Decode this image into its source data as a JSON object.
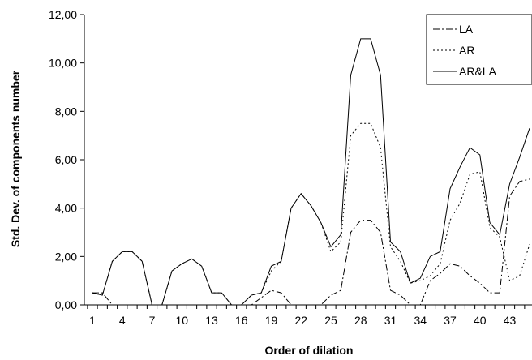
{
  "chart_data": {
    "type": "line",
    "xlabel": "Order of dilation",
    "ylabel": "Std. Dev. of components number",
    "ylim": [
      0,
      12
    ],
    "yticks": [
      "0,00",
      "2,00",
      "4,00",
      "6,00",
      "8,00",
      "10,00",
      "12,00"
    ],
    "x": [
      1,
      2,
      3,
      4,
      5,
      6,
      7,
      8,
      9,
      10,
      11,
      12,
      13,
      14,
      15,
      16,
      17,
      18,
      19,
      20,
      21,
      22,
      23,
      24,
      25,
      26,
      27,
      28,
      29,
      30,
      31,
      32,
      33,
      34,
      35,
      36,
      37,
      38,
      39,
      40,
      41,
      42,
      43,
      44,
      45
    ],
    "xtick_labels": [
      "1",
      "4",
      "7",
      "10",
      "13",
      "16",
      "19",
      "22",
      "25",
      "28",
      "31",
      "34",
      "37",
      "40",
      "43"
    ],
    "legend_position": "top-right",
    "grid": false,
    "series": [
      {
        "name": "LA",
        "style": "dashdot",
        "values": [
          0.5,
          0.5,
          0,
          0,
          0,
          0,
          0,
          0,
          0,
          0,
          0,
          0,
          0,
          0,
          0,
          0,
          0,
          0.3,
          0.6,
          0.5,
          0,
          0,
          0,
          0,
          0.4,
          0.6,
          3.0,
          3.5,
          3.5,
          3.0,
          0.6,
          0.4,
          0,
          0,
          1.0,
          1.3,
          1.7,
          1.6,
          1.2,
          0.9,
          0.5,
          0.5,
          4.5,
          5.1,
          5.2
        ]
      },
      {
        "name": "AR",
        "style": "dotted",
        "values": [
          0.5,
          0.4,
          1.8,
          2.2,
          2.2,
          1.8,
          0,
          0,
          1.4,
          1.7,
          1.9,
          1.6,
          0.5,
          0.5,
          0,
          0,
          0.4,
          0.5,
          1.4,
          1.8,
          4.0,
          4.6,
          4.1,
          3.4,
          2.2,
          2.6,
          7.0,
          7.5,
          7.5,
          6.5,
          2.4,
          1.8,
          0.9,
          1.0,
          1.2,
          1.7,
          3.5,
          4.2,
          5.4,
          5.5,
          3.2,
          2.8,
          1.0,
          1.2,
          2.5
        ]
      },
      {
        "name": "AR&LA",
        "style": "solid",
        "values": [
          0.5,
          0.4,
          1.8,
          2.2,
          2.2,
          1.8,
          0,
          0,
          1.4,
          1.7,
          1.9,
          1.6,
          0.5,
          0.5,
          0,
          0,
          0.4,
          0.5,
          1.6,
          1.8,
          4.0,
          4.6,
          4.1,
          3.4,
          2.4,
          2.9,
          9.5,
          11.0,
          11.0,
          9.5,
          2.6,
          2.2,
          0.9,
          1.1,
          2.0,
          2.2,
          4.8,
          5.7,
          6.5,
          6.2,
          3.4,
          2.9,
          5.0,
          6.1,
          7.3
        ]
      }
    ]
  }
}
